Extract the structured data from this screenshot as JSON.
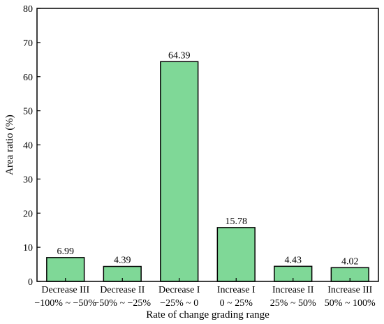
{
  "chart_data": {
    "type": "bar",
    "title": "",
    "xlabel": "Rate of change grading range",
    "ylabel": "Area ratio (%)",
    "ylim": [
      0,
      80
    ],
    "yticks": [
      0,
      10,
      20,
      30,
      40,
      50,
      60,
      70,
      80
    ],
    "grid": false,
    "legend": "none",
    "categories": [
      {
        "name": "Decrease III",
        "range": "−100% ~ −50%"
      },
      {
        "name": "Decrease II",
        "range": "−50% ~ −25%"
      },
      {
        "name": "Decrease I",
        "range": "−25% ~ 0"
      },
      {
        "name": "Increase I",
        "range": "0 ~ 25%"
      },
      {
        "name": "Increase II",
        "range": "25% ~ 50%"
      },
      {
        "name": "Increase III",
        "range": "50% ~ 100%"
      }
    ],
    "values": [
      6.99,
      4.39,
      64.39,
      15.78,
      4.43,
      4.02
    ],
    "value_labels": [
      "6.99",
      "4.39",
      "64.39",
      "15.78",
      "4.43",
      "4.02"
    ],
    "bar_color": "#7fd897",
    "bar_edge_color": "#000000"
  }
}
